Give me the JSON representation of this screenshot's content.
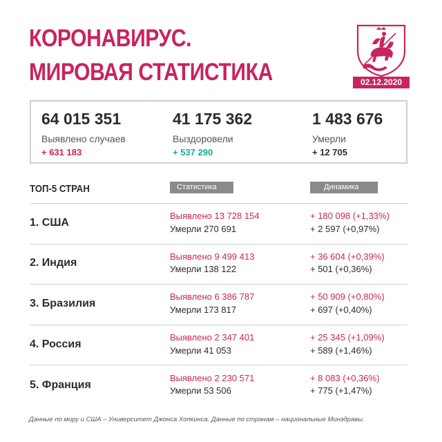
{
  "header": {
    "title_line1": "КОРОНАВИРУС.",
    "title_line2": "МИРОВАЯ СТАТИСТИКА",
    "date": "02.12.2020",
    "emblem_icon": "moscow-coat-of-arms-icon"
  },
  "colors": {
    "accent": "#c8245d",
    "recovered": "#1aa89a",
    "text": "#2b2b2b",
    "tag_gray": "#8a8a8a",
    "border": "#cfcfcf"
  },
  "summary": {
    "cases": {
      "value": "64 015 351",
      "label": "Выявлено случаев",
      "delta": "+ 631 183"
    },
    "recovered": {
      "value": "41 175 362",
      "label": "Выздоровели",
      "delta": "+ 537 290"
    },
    "deaths": {
      "value": "1 483 676",
      "label": "Умерли",
      "delta": "+ 12 705"
    }
  },
  "top": {
    "title": "ТОП-5 СТРАН",
    "col_stat": "Статистика",
    "col_dynamics": "Динамика",
    "rows": [
      {
        "country": "1. США",
        "detected": "Выявлено 13 728 154",
        "died": "Умерли 270 691",
        "dyn_detected": "+ 180 098 (+1,33%)",
        "dyn_died": "+ 2 597 (+0,97%)"
      },
      {
        "country": "2. Индия",
        "detected": "Выявлено 9 499 413",
        "died": "Умерли 138 122",
        "dyn_detected": "+ 36 604 (+0,39%)",
        "dyn_died": "+ 501 (+0,36%)"
      },
      {
        "country": "3. Бразилия",
        "detected": "Выявлено 6 386 787",
        "died": "Умерли 173 817",
        "dyn_detected": "+ 50 909 (+0,80%)",
        "dyn_died": "+ 697 (+0,40%)"
      },
      {
        "country": "4. Россия",
        "detected": "Выявлено 2 347 401",
        "died": "Умерли 41 053",
        "dyn_detected": "+ 25 345 (+1,09%)",
        "dyn_died": "+ 589 (+1,46%)"
      },
      {
        "country": "5. Франция",
        "detected": "Выявлено 2 230 571",
        "died": "Умерли 53 506",
        "dyn_detected": "+ 8 083 (+0,36%)",
        "dyn_died": "+ 775 (+1,47%)"
      }
    ]
  },
  "footer": {
    "source": "Данные по миру и США – Университет Джонса Хопкинса. Данные по странам – национальные Минздравы."
  }
}
